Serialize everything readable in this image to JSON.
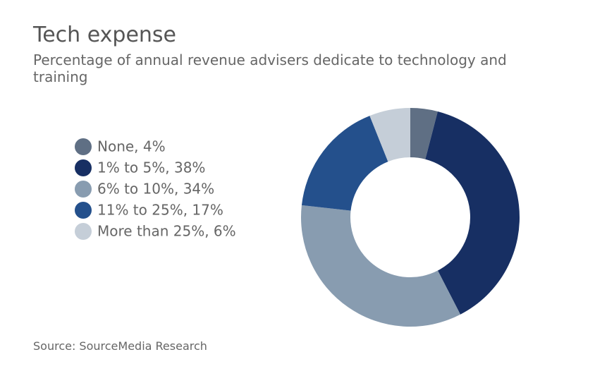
{
  "chart_data": {
    "type": "donut",
    "title": "Tech expense",
    "subtitle": "Percentage of annual revenue advisers dedicate to technology and training",
    "source": "Source: SourceMedia Research",
    "categories": [
      "None, 4%",
      "1% to 5%, 38%",
      "6% to 10%, 34%",
      "11% to 25%, 17%",
      "More than 25%, 6%"
    ],
    "values": [
      4,
      38,
      34,
      17,
      6
    ],
    "colors": [
      "#5f6f84",
      "#172f63",
      "#889cb0",
      "#24508c",
      "#c5ced8"
    ]
  }
}
